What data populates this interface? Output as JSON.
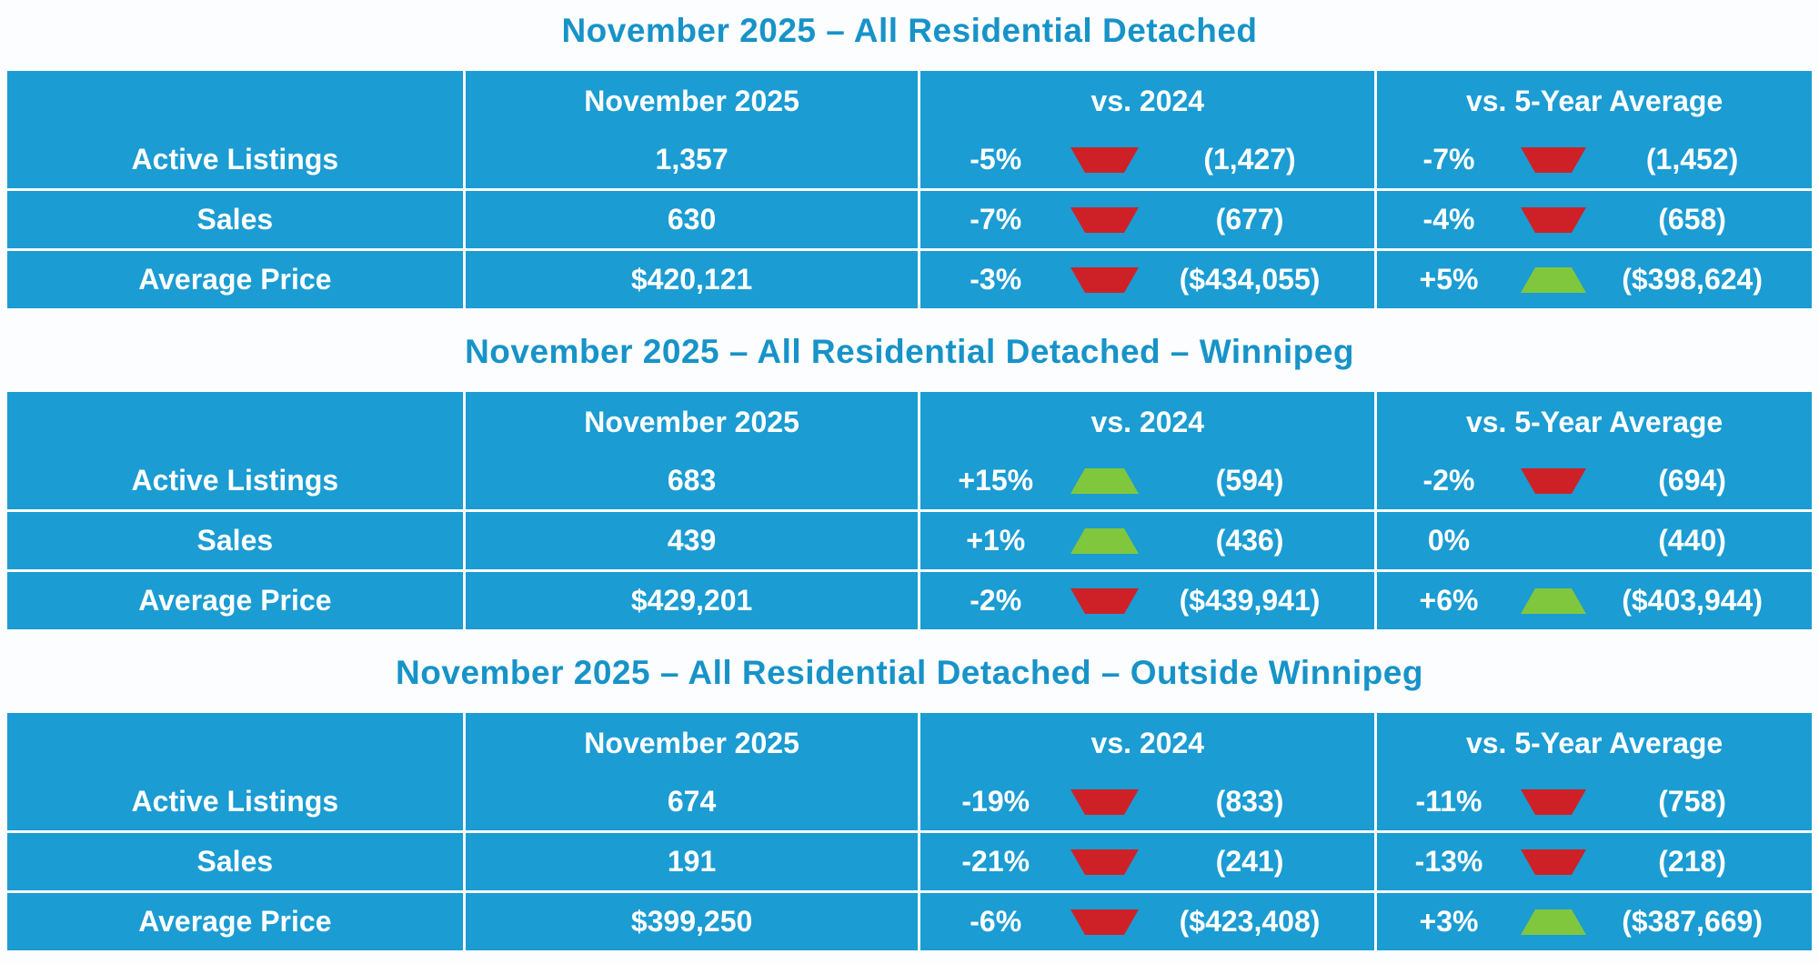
{
  "colors": {
    "cell_background": "#1b9cd3",
    "title_text": "#1793c8",
    "cell_text": "#ffffff",
    "up_triangle": "#80c73d",
    "down_triangle": "#ce2127",
    "page_background": "#fbfdfe"
  },
  "chart_data": [
    {
      "type": "table",
      "title": "November 2025 – All Residential Detached",
      "headers": [
        "",
        "November 2025",
        "vs. 2024",
        "vs. 5-Year Average"
      ],
      "rows": [
        {
          "label": "Active Listings",
          "november_2025": "1,357",
          "vs_2024": {
            "pct": "-5%",
            "direction": "down",
            "comparison": "(1,427)"
          },
          "vs_5yr_avg": {
            "pct": "-7%",
            "direction": "down",
            "comparison": "(1,452)"
          }
        },
        {
          "label": "Sales",
          "november_2025": "630",
          "vs_2024": {
            "pct": "-7%",
            "direction": "down",
            "comparison": "(677)"
          },
          "vs_5yr_avg": {
            "pct": "-4%",
            "direction": "down",
            "comparison": "(658)"
          }
        },
        {
          "label": "Average Price",
          "november_2025": "$420,121",
          "vs_2024": {
            "pct": "-3%",
            "direction": "down",
            "comparison": "($434,055)"
          },
          "vs_5yr_avg": {
            "pct": "+5%",
            "direction": "up",
            "comparison": "($398,624)"
          }
        }
      ]
    },
    {
      "type": "table",
      "title": "November 2025 – All Residential Detached – Winnipeg",
      "headers": [
        "",
        "November 2025",
        "vs. 2024",
        "vs. 5-Year Average"
      ],
      "rows": [
        {
          "label": "Active Listings",
          "november_2025": "683",
          "vs_2024": {
            "pct": "+15%",
            "direction": "up",
            "comparison": "(594)"
          },
          "vs_5yr_avg": {
            "pct": "-2%",
            "direction": "down",
            "comparison": "(694)"
          }
        },
        {
          "label": "Sales",
          "november_2025": "439",
          "vs_2024": {
            "pct": "+1%",
            "direction": "up",
            "comparison": "(436)"
          },
          "vs_5yr_avg": {
            "pct": "0%",
            "direction": "none",
            "comparison": "(440)"
          }
        },
        {
          "label": "Average Price",
          "november_2025": "$429,201",
          "vs_2024": {
            "pct": "-2%",
            "direction": "down",
            "comparison": "($439,941)"
          },
          "vs_5yr_avg": {
            "pct": "+6%",
            "direction": "up",
            "comparison": "($403,944)"
          }
        }
      ]
    },
    {
      "type": "table",
      "title": "November 2025 – All Residential Detached – Outside Winnipeg",
      "headers": [
        "",
        "November 2025",
        "vs. 2024",
        "vs. 5-Year Average"
      ],
      "rows": [
        {
          "label": "Active Listings",
          "november_2025": "674",
          "vs_2024": {
            "pct": "-19%",
            "direction": "down",
            "comparison": "(833)"
          },
          "vs_5yr_avg": {
            "pct": "-11%",
            "direction": "down",
            "comparison": "(758)"
          }
        },
        {
          "label": "Sales",
          "november_2025": "191",
          "vs_2024": {
            "pct": "-21%",
            "direction": "down",
            "comparison": "(241)"
          },
          "vs_5yr_avg": {
            "pct": "-13%",
            "direction": "down",
            "comparison": "(218)"
          }
        },
        {
          "label": "Average Price",
          "november_2025": "$399,250",
          "vs_2024": {
            "pct": "-6%",
            "direction": "down",
            "comparison": "($423,408)"
          },
          "vs_5yr_avg": {
            "pct": "+3%",
            "direction": "up",
            "comparison": "($387,669)"
          }
        }
      ]
    }
  ]
}
